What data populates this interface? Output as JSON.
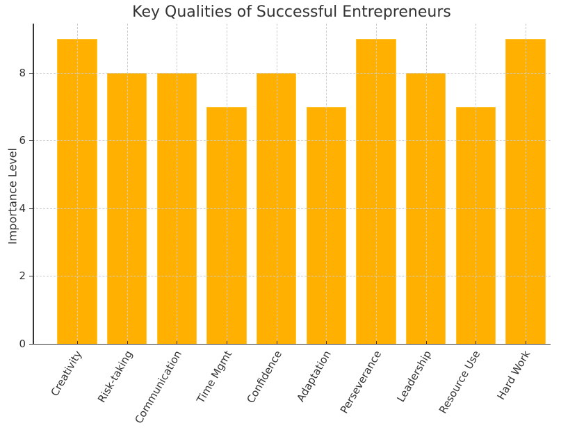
{
  "chart_data": {
    "type": "bar",
    "title": "Key Qualities of Successful Entrepreneurs",
    "xlabel": "",
    "ylabel": "Importance Level",
    "categories": [
      "Creativity",
      "Risk-taking",
      "Communication",
      "Time Mgmt",
      "Confidence",
      "Adaptation",
      "Perseverance",
      "Leadership",
      "Resource Use",
      "Hard Work"
    ],
    "values": [
      9,
      8,
      8,
      7,
      8,
      7,
      9,
      8,
      7,
      9
    ],
    "ylim": [
      0,
      9.45
    ],
    "yticks": [
      0,
      2,
      4,
      6,
      8
    ],
    "grid": true,
    "grid_style": "dashed",
    "bar_color": "#FFB000",
    "legend": null,
    "xtick_rotation": 60
  }
}
